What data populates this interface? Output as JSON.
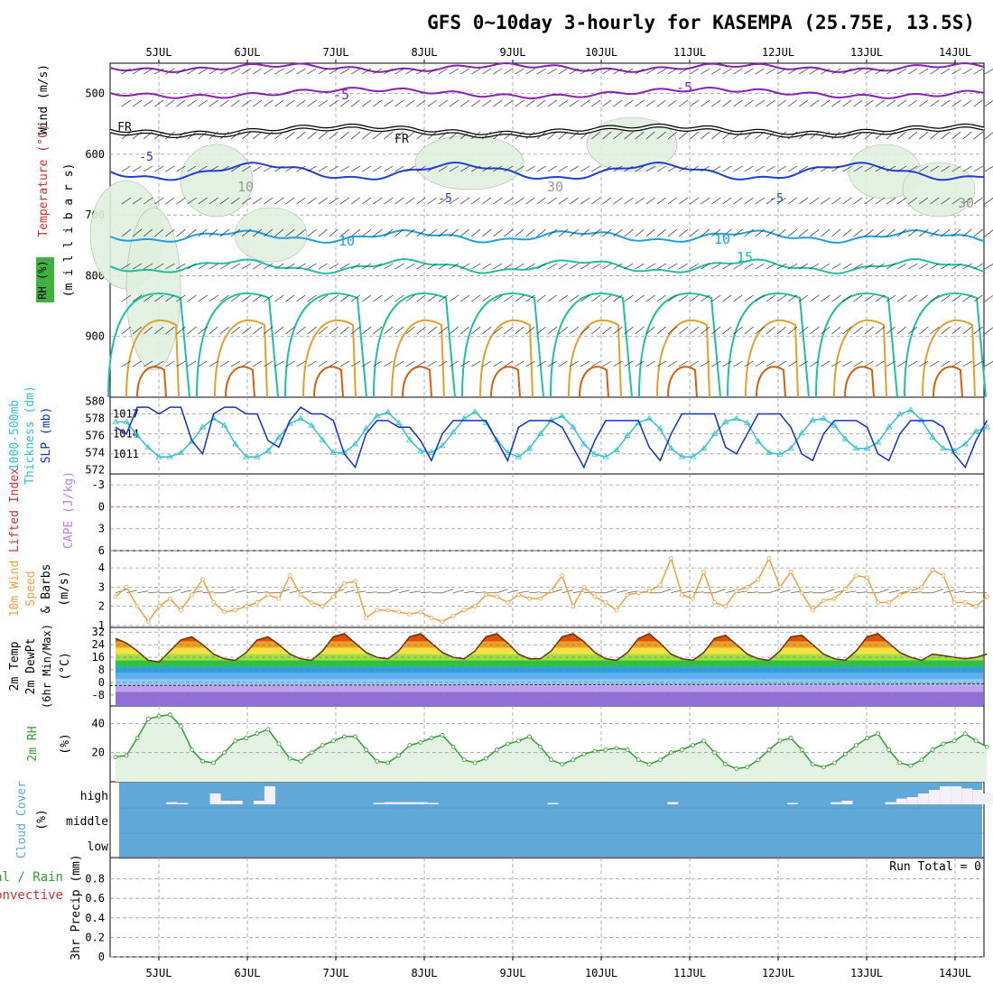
{
  "title": "GFS 0~10day 3-hourly for KASEMPA (25.75E, 13.5S)",
  "days": [
    "5JUL",
    "6JUL",
    "7JUL",
    "8JUL",
    "9JUL",
    "10JUL",
    "11JUL",
    "12JUL",
    "13JUL",
    "14JUL"
  ],
  "colors": {
    "purple": "#8a1fb8",
    "black": "#111111",
    "blue": "#1f3fd6",
    "lightblue": "#1f9fe0",
    "teal": "#1fc0a0",
    "orange": "#e0a030",
    "darkorange": "#d06010",
    "cyan": "#30c0d0",
    "slp": "#1030c8",
    "wind": "#f0a040",
    "cloud": "#5fa8d8",
    "rh2m": "#30a030",
    "cape_line": "#e06060"
  },
  "panels": {
    "upper_air": {
      "ylabels": [
        "Wind (m/s)",
        "Temperature (°C)",
        "(m i l l i b a r s)",
        "RH (%)"
      ],
      "yticks": [
        500,
        600,
        700,
        800,
        900
      ],
      "ylim": [
        1000,
        450
      ],
      "contour_labels": [
        "-5",
        "-5",
        "FR",
        "FR",
        "-5",
        "-5",
        "-5",
        "10",
        "10",
        "15",
        "10",
        "30",
        "30"
      ]
    },
    "thickness_slp": {
      "ylabels": [
        "1000-500mb",
        "Thickness (dm)",
        "SLP (mb)"
      ],
      "yticks_left": [
        580,
        578,
        576,
        574,
        572
      ],
      "yticks_right": [
        1017,
        1014,
        1011
      ]
    },
    "cape": {
      "ylabels": [
        "Lifted Index",
        "CAPE (J/kg)"
      ],
      "yticks": [
        -3,
        0,
        3,
        6
      ]
    },
    "wind10m": {
      "ylabels": [
        "10m Wind",
        "Speed",
        "& Barbs",
        "(m/s)"
      ],
      "yticks": [
        4,
        3,
        2,
        1
      ]
    },
    "temp2m": {
      "ylabels": [
        "2m Temp",
        "2m DewPt",
        "(6hr Min/Max)",
        "(°C)"
      ],
      "yticks": [
        32,
        24,
        16,
        8,
        0,
        -8
      ]
    },
    "rh2m": {
      "ylabels": [
        "2m RH",
        "(%)"
      ],
      "yticks": [
        40,
        20
      ]
    },
    "cloud": {
      "ylabels": [
        "Cloud Cover",
        "(%)"
      ],
      "levels": [
        "high",
        "middle",
        "low"
      ]
    },
    "precip": {
      "ylabels": [
        "Total / Rain",
        "Convective",
        "3hr Precip (mm)"
      ],
      "yticks": [
        0.8,
        0.6,
        0.4,
        0.2,
        0
      ],
      "run_total": "Run Total = 0"
    }
  },
  "chart_data": [
    {
      "type": "line",
      "name": "SLP",
      "units": "mb",
      "values": [
        1015,
        1014,
        1018,
        1018,
        1017,
        1018,
        1018,
        1013,
        1011,
        1017,
        1018,
        1018,
        1017,
        1017,
        1013,
        1012,
        1016,
        1018,
        1017,
        1017,
        1016,
        1011,
        1009,
        1014,
        1016,
        1016,
        1015,
        1015,
        1013,
        1010,
        1014,
        1016,
        1016,
        1016,
        1016,
        1013,
        1010,
        1015,
        1016,
        1016,
        1016,
        1015,
        1012,
        1009,
        1013,
        1016,
        1016,
        1016,
        1016,
        1012,
        1010,
        1014,
        1017,
        1017,
        1017,
        1017,
        1012,
        1011,
        1014,
        1017,
        1017,
        1017,
        1015,
        1011,
        1010,
        1014,
        1016,
        1016,
        1016,
        1015,
        1011,
        1010,
        1014,
        1016,
        1016,
        1016,
        1015,
        1011,
        1009,
        1013,
        1016
      ]
    },
    {
      "type": "line",
      "name": "1000-500mb Thickness",
      "units": "dm",
      "values": [
        577.6,
        577.6,
        576,
        574.6,
        573.5,
        573.5,
        574,
        575.3,
        577,
        578,
        577.2,
        575,
        573.5,
        573.5,
        574.2,
        575.8,
        577.4,
        578,
        577.2,
        575.5,
        574,
        574,
        575,
        576.8,
        578.3,
        578.7,
        577.5,
        575.5,
        574.2,
        574,
        574.8,
        576.4,
        578,
        578.8,
        577.5,
        575.5,
        574,
        573.5,
        574.5,
        576.2,
        577.8,
        578.3,
        577,
        575,
        573.8,
        573.5,
        574.3,
        576,
        577.5,
        578,
        576.8,
        574.5,
        573.5,
        573.5,
        574.5,
        576.2,
        577.6,
        578,
        577.5,
        575.3,
        574,
        573.8,
        574.5,
        576.3,
        577.8,
        578,
        577.2,
        575.6,
        574.5,
        574.5,
        575.2,
        577,
        578.5,
        579,
        577.8,
        575.8,
        574.5,
        574.2,
        575,
        576.5,
        577
      ]
    },
    {
      "type": "line",
      "name": "10m Wind Speed",
      "units": "m/s",
      "values": [
        2.5,
        3,
        2,
        1.2,
        2,
        2.4,
        1.8,
        2.6,
        3.4,
        2.2,
        1.7,
        1.8,
        2,
        2.2,
        2.6,
        2.4,
        3.6,
        2.6,
        2.2,
        2,
        2.5,
        3.2,
        3.3,
        1.4,
        1.8,
        1.8,
        1.7,
        1.6,
        1.7,
        1.4,
        1.2,
        1.5,
        1.8,
        2,
        2.6,
        2.5,
        2.2,
        2.6,
        2.4,
        2.4,
        2.8,
        3.6,
        2,
        3,
        2.5,
        2.2,
        1.8,
        2.6,
        2.7,
        2.8,
        3.1,
        4.5,
        2.6,
        2.4,
        3.8,
        2.2,
        2,
        2.8,
        3,
        3.4,
        4.5,
        3,
        3.8,
        2.7,
        1.8,
        2.3,
        2.4,
        2.9,
        3.6,
        3.5,
        2.2,
        2.2,
        2.6,
        2.8,
        3,
        3.9,
        3.6,
        2.2,
        2.2,
        2,
        2.5
      ]
    },
    {
      "type": "area",
      "name": "2m Temp",
      "units": "°C",
      "values": [
        28,
        25,
        20,
        14,
        13,
        20,
        27,
        29,
        24,
        18,
        15,
        14,
        19,
        27,
        29,
        24,
        18,
        15,
        14,
        20,
        29,
        31,
        25,
        19,
        16,
        15,
        20,
        29,
        31,
        25,
        19,
        16,
        15,
        20,
        29,
        31,
        25,
        18,
        15,
        15,
        20,
        29,
        31,
        26,
        19,
        15,
        14,
        19,
        28,
        31,
        25,
        18,
        15,
        14,
        19,
        28,
        30,
        24,
        18,
        15,
        14,
        20,
        29,
        30,
        24,
        18,
        15,
        14,
        20,
        29,
        31,
        25,
        19,
        16,
        14,
        18,
        17,
        16,
        15,
        16,
        18
      ]
    },
    {
      "type": "area",
      "name": "2m RH",
      "units": "%",
      "values": [
        17,
        18,
        30,
        43,
        45,
        46,
        38,
        22,
        14,
        13,
        20,
        28,
        30,
        33,
        36,
        26,
        16,
        14,
        20,
        25,
        28,
        31,
        31,
        22,
        14,
        13,
        18,
        25,
        27,
        30,
        32,
        24,
        15,
        13,
        16,
        22,
        26,
        28,
        31,
        24,
        15,
        12,
        15,
        19,
        21,
        22,
        23,
        22,
        15,
        12,
        15,
        20,
        22,
        25,
        28,
        20,
        12,
        9,
        10,
        15,
        22,
        28,
        30,
        22,
        12,
        10,
        13,
        19,
        25,
        30,
        33,
        22,
        13,
        11,
        15,
        22,
        26,
        28,
        33,
        28,
        24
      ]
    },
    {
      "type": "bar",
      "name": "High Cloud Cover",
      "units": "%",
      "values": [
        0,
        0,
        0,
        0,
        0,
        3,
        2,
        0,
        0,
        15,
        5,
        5,
        0,
        5,
        25,
        0,
        0,
        0,
        0,
        0,
        0,
        0,
        0,
        0,
        2,
        3,
        3,
        3,
        3,
        2,
        0,
        0,
        0,
        0,
        0,
        0,
        0,
        0,
        0,
        0,
        2,
        0,
        0,
        0,
        0,
        0,
        0,
        0,
        0,
        0,
        0,
        3,
        0,
        0,
        0,
        0,
        0,
        0,
        0,
        0,
        0,
        0,
        2,
        0,
        0,
        0,
        3,
        5,
        0,
        0,
        0,
        3,
        8,
        10,
        15,
        20,
        25,
        25,
        22,
        20,
        15
      ]
    },
    {
      "type": "bar",
      "name": "3hr Precip",
      "units": "mm",
      "ylim": [
        0,
        1
      ],
      "values": [
        0,
        0,
        0,
        0,
        0,
        0,
        0,
        0,
        0,
        0,
        0,
        0,
        0,
        0,
        0,
        0,
        0,
        0,
        0,
        0,
        0,
        0,
        0,
        0,
        0,
        0,
        0,
        0,
        0,
        0,
        0,
        0,
        0,
        0,
        0,
        0,
        0,
        0,
        0,
        0,
        0,
        0,
        0,
        0,
        0,
        0,
        0,
        0,
        0,
        0,
        0,
        0,
        0,
        0,
        0,
        0,
        0,
        0,
        0,
        0,
        0,
        0,
        0,
        0,
        0,
        0,
        0,
        0,
        0,
        0,
        0,
        0,
        0,
        0,
        0,
        0,
        0,
        0,
        0,
        0,
        0
      ]
    }
  ]
}
